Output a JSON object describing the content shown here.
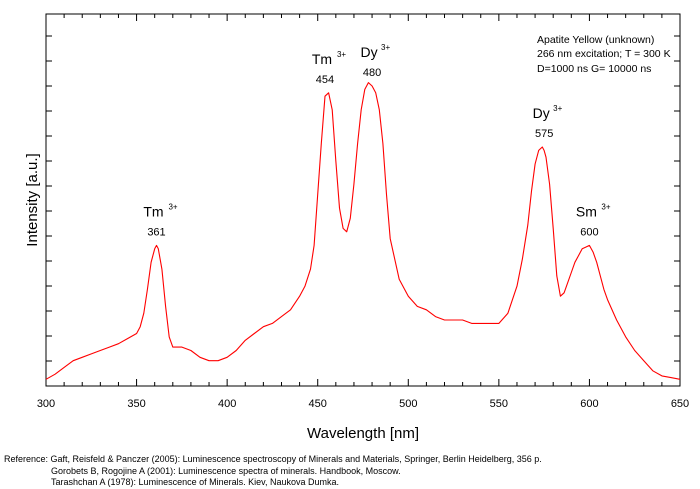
{
  "chart_data": {
    "type": "line",
    "xlabel": "Wavelength [nm]",
    "ylabel": "Intensity [a.u.]",
    "xlim": [
      300,
      650
    ],
    "ylim": [
      0,
      100
    ],
    "x_ticks": [
      "300",
      "350",
      "400",
      "450",
      "500",
      "550",
      "600",
      "650"
    ],
    "y_ticks_labeled": false,
    "grid": false,
    "series_color": "#ff0000",
    "annotation_box": [
      "Apatite Yellow (unknown)",
      "266 nm excitation; T = 300 K",
      "D=1000 ns G= 10000 ns"
    ],
    "peaks": [
      {
        "ion": "Tm",
        "sup": "3+",
        "label": "361",
        "x": 361,
        "y": 40
      },
      {
        "ion": "Tm",
        "sup": "3+",
        "label": "454",
        "x": 454,
        "y": 85
      },
      {
        "ion": "Dy",
        "sup": "3+",
        "label": "480",
        "x": 480,
        "y": 87
      },
      {
        "ion": "Dy",
        "sup": "3+",
        "label": "575",
        "x": 575,
        "y": 69
      },
      {
        "ion": "Sm",
        "sup": "3+",
        "label": "600",
        "x": 600,
        "y": 40
      }
    ],
    "x": [
      300,
      305,
      310,
      315,
      320,
      325,
      330,
      335,
      340,
      345,
      350,
      352,
      354,
      356,
      358,
      360,
      361,
      362,
      364,
      366,
      368,
      370,
      375,
      380,
      385,
      390,
      395,
      400,
      405,
      410,
      415,
      420,
      425,
      430,
      435,
      440,
      443,
      446,
      448,
      450,
      452,
      454,
      456,
      458,
      460,
      462,
      464,
      466,
      468,
      470,
      472,
      474,
      476,
      478,
      480,
      482,
      484,
      486,
      488,
      490,
      495,
      500,
      505,
      510,
      515,
      520,
      525,
      530,
      535,
      540,
      545,
      550,
      555,
      560,
      563,
      566,
      568,
      570,
      572,
      574,
      575,
      576,
      578,
      580,
      582,
      584,
      586,
      588,
      590,
      592,
      594,
      596,
      598,
      600,
      602,
      604,
      606,
      608,
      610,
      615,
      620,
      625,
      630,
      635,
      640,
      645,
      650
    ],
    "values": [
      0.5,
      2,
      4,
      6,
      7,
      8,
      9,
      10,
      11,
      12.5,
      14,
      16,
      20,
      27,
      35,
      39,
      40,
      39,
      33,
      22,
      13,
      10,
      10,
      9,
      7,
      6,
      6,
      7,
      9,
      12,
      14,
      16,
      17,
      19,
      21,
      25,
      28,
      33,
      40,
      55,
      70,
      84,
      85,
      80,
      65,
      51,
      45,
      44,
      48,
      58,
      70,
      80,
      86,
      88,
      87,
      85,
      80,
      70,
      55,
      42,
      30,
      25,
      22,
      21,
      19,
      18,
      18,
      18,
      17,
      17,
      17,
      17,
      20,
      28,
      36,
      46,
      56,
      64,
      68,
      69,
      68,
      66,
      58,
      45,
      31,
      25,
      26,
      29,
      32,
      35,
      37,
      39,
      39.5,
      40,
      38,
      35,
      31,
      27,
      24,
      18,
      13,
      9,
      6,
      3,
      1.5,
      1,
      0.5
    ]
  },
  "references": [
    "Reference: Gaft, Reisfeld & Panczer (2005): Luminescence spectroscopy of Minerals and Materials, Springer, Berlin Heidelberg, 356 p.",
    "Gorobets B, Rogojine A (2001): Luminescence spectra of minerals. Handbook, Moscow.",
    "Tarashchan A (1978): Luminescence of Minerals. Kiev, Naukova Dumka."
  ]
}
